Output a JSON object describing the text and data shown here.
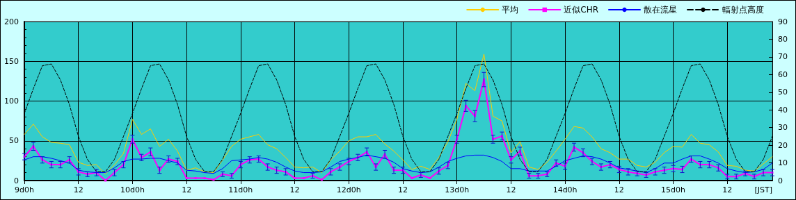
{
  "chart_data": {
    "type": "line",
    "xlabel": "[JST]",
    "legend": "top right",
    "grid": true,
    "marker": "none",
    "categories": [
      "9d0h",
      null,
      null,
      null,
      null,
      null,
      "12",
      null,
      null,
      null,
      null,
      null,
      "10d0h",
      null,
      null,
      null,
      null,
      null,
      "12",
      null,
      null,
      null,
      null,
      null,
      "11d0h",
      null,
      null,
      null,
      null,
      null,
      "12",
      null,
      null,
      null,
      null,
      null,
      "12d0h",
      null,
      null,
      null,
      null,
      null,
      "12",
      null,
      null,
      null,
      null,
      null,
      "13d0h",
      null,
      null,
      null,
      null,
      null,
      "12",
      null,
      null,
      null,
      null,
      null,
      "14d0h",
      null,
      null,
      null,
      null,
      null,
      "12",
      null,
      null,
      null,
      null,
      null,
      "15d0h",
      null,
      null,
      null,
      null,
      null,
      "12",
      null,
      null,
      null,
      null,
      null
    ],
    "ylim": [
      0,
      200
    ],
    "yticks": [
      0,
      50,
      100,
      150,
      200
    ],
    "y2lim": [
      0,
      90
    ],
    "y2ticks": [
      0,
      10,
      20,
      30,
      40,
      50,
      60,
      70,
      80,
      90
    ],
    "series": [
      {
        "name": "平均",
        "color": "#ffcc00",
        "values": [
          58,
          71,
          55,
          48,
          47,
          45,
          23,
          19,
          20,
          8,
          20,
          34,
          77,
          58,
          65,
          43,
          52,
          37,
          13,
          16,
          11,
          10,
          26,
          43,
          52,
          55,
          58,
          45,
          40,
          29,
          17,
          16,
          17,
          10,
          26,
          37,
          50,
          55,
          55,
          58,
          46,
          37,
          26,
          14,
          18,
          14,
          29,
          49,
          77,
          122,
          113,
          159,
          81,
          75,
          35,
          49,
          17,
          14,
          23,
          37,
          52,
          68,
          66,
          55,
          40,
          35,
          27,
          27,
          19,
          17,
          23,
          35,
          43,
          42,
          58,
          47,
          45,
          36,
          19,
          18,
          13,
          12,
          21,
          30
        ]
      },
      {
        "name": "近似CHR",
        "color": "#ff00ff",
        "marker": "square",
        "values": [
          30,
          43,
          26,
          20,
          20,
          26,
          11,
          8,
          10,
          0,
          10,
          20,
          52,
          29,
          36,
          13,
          27,
          24,
          3,
          3,
          3,
          1,
          8,
          6,
          20,
          26,
          27,
          17,
          13,
          11,
          3,
          3,
          6,
          1,
          11,
          17,
          24,
          29,
          36,
          17,
          33,
          13,
          13,
          3,
          7,
          3,
          12,
          19,
          52,
          94,
          81,
          127,
          52,
          56,
          26,
          37,
          6,
          6,
          8,
          22,
          18,
          42,
          35,
          24,
          17,
          20,
          14,
          11,
          9,
          7,
          11,
          13,
          15,
          14,
          27,
          20,
          20,
          16,
          5,
          5,
          9,
          5,
          10,
          10
        ],
        "errors": [
          4,
          5,
          4,
          4,
          4,
          4,
          4,
          3,
          4,
          null,
          4,
          4,
          5,
          4,
          5,
          4,
          4,
          4,
          null,
          null,
          null,
          null,
          3,
          3,
          4,
          4,
          4,
          4,
          4,
          4,
          null,
          null,
          3,
          null,
          4,
          4,
          4,
          4,
          5,
          4,
          5,
          4,
          4,
          null,
          3,
          null,
          4,
          4,
          5,
          7,
          7,
          9,
          5,
          5,
          4,
          5,
          3,
          3,
          3,
          4,
          4,
          5,
          5,
          4,
          4,
          4,
          4,
          4,
          3,
          3,
          4,
          4,
          4,
          4,
          4,
          4,
          4,
          4,
          3,
          3,
          3,
          3,
          4,
          4
        ]
      },
      {
        "name": "散在流星",
        "color": "#0000ff",
        "values": [
          26,
          30,
          30,
          28,
          25,
          22,
          13,
          11,
          10,
          10,
          16,
          24,
          27,
          27,
          28,
          28,
          25,
          22,
          13,
          12,
          10,
          9,
          15,
          25,
          26,
          27,
          29,
          27,
          23,
          17,
          12,
          10,
          10,
          11,
          17,
          24,
          27,
          29,
          32,
          30,
          28,
          23,
          15,
          12,
          10,
          11,
          17,
          24,
          28,
          31,
          32,
          32,
          29,
          24,
          15,
          15,
          12,
          12,
          12,
          18,
          25,
          28,
          31,
          30,
          27,
          22,
          16,
          14,
          12,
          10,
          15,
          22,
          22,
          27,
          31,
          31,
          27,
          22,
          15,
          12,
          10,
          11,
          14,
          22
        ]
      },
      {
        "name": "輻射点高度",
        "color": "#000000",
        "axis": "y2",
        "line_style": "dashed",
        "values": [
          38,
          52,
          65,
          66,
          57,
          43,
          25,
          12,
          5,
          5,
          12,
          25,
          38,
          52,
          65,
          66,
          57,
          43,
          25,
          12,
          5,
          5,
          12,
          25,
          38,
          52,
          65,
          66,
          57,
          43,
          25,
          12,
          5,
          5,
          12,
          25,
          38,
          52,
          65,
          66,
          57,
          43,
          25,
          12,
          5,
          5,
          12,
          25,
          38,
          52,
          65,
          66,
          57,
          43,
          25,
          12,
          5,
          5,
          12,
          25,
          38,
          52,
          65,
          66,
          57,
          43,
          25,
          12,
          5,
          5,
          12,
          25,
          38,
          52,
          65,
          66,
          57,
          43,
          25,
          12,
          5,
          5,
          12,
          25
        ]
      }
    ]
  }
}
